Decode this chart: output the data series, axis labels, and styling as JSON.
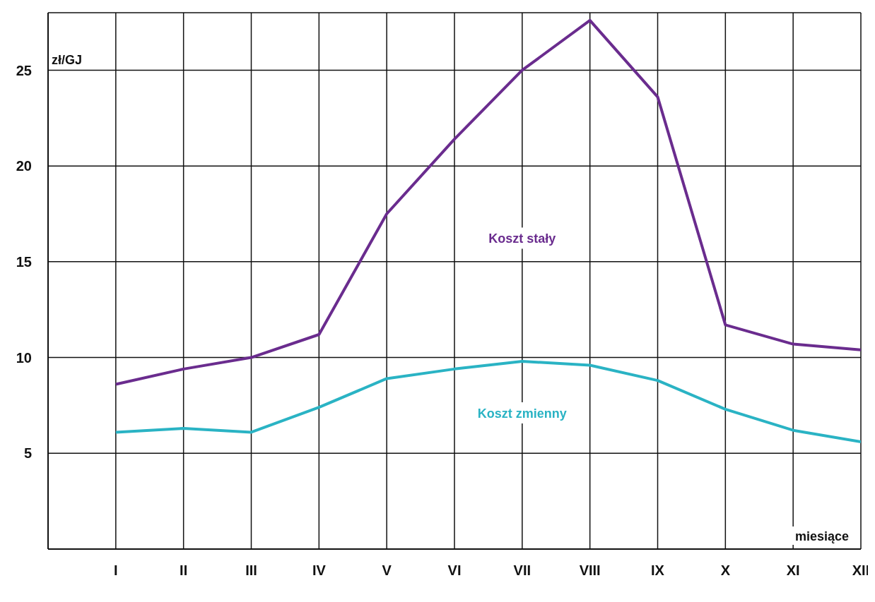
{
  "chart_data": {
    "type": "line",
    "ylabel": "zł/GJ",
    "xlabel": "miesiące",
    "categories": [
      "I",
      "II",
      "III",
      "IV",
      "V",
      "VI",
      "VII",
      "VIII",
      "IX",
      "X",
      "XI",
      "XII"
    ],
    "series": [
      {
        "name": "Koszt stały",
        "color": "#6a2c8e",
        "values": [
          8.6,
          9.4,
          10.0,
          11.2,
          17.5,
          21.4,
          25.0,
          27.6,
          23.6,
          11.7,
          10.7,
          10.4
        ]
      },
      {
        "name": "Koszt zmienny",
        "color": "#2ab3c4",
        "values": [
          6.1,
          6.3,
          6.1,
          7.4,
          8.9,
          9.4,
          9.8,
          9.6,
          8.8,
          7.3,
          6.2,
          5.6
        ]
      }
    ],
    "ylim": [
      0,
      28
    ],
    "yticks": [
      5,
      10,
      15,
      20,
      25
    ],
    "grid": true,
    "legend": false,
    "marker": "none",
    "line_style": "solid"
  }
}
